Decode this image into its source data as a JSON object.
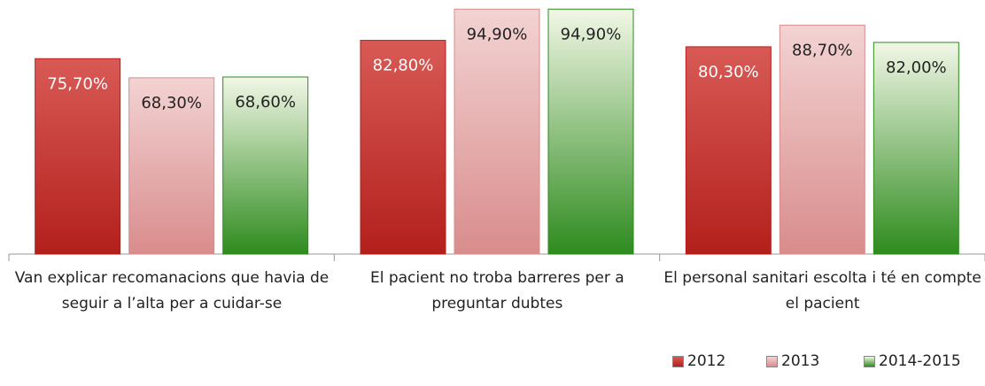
{
  "chart_data": {
    "type": "bar",
    "categories": [
      "Van explicar recomanacions que havia de seguir a l’alta per a cuidar-se",
      "El pacient no troba barreres per a preguntar dubtes",
      "El personal sanitari escolta i té en compte el pacient"
    ],
    "series": [
      {
        "name": "2012",
        "color": "#b3201c",
        "values": [
          75.7,
          82.8,
          80.3
        ],
        "value_labels": [
          "75,70%",
          "82,80%",
          "80,30%"
        ]
      },
      {
        "name": "2013",
        "color": "#d98c8c",
        "values": [
          68.3,
          94.9,
          88.7
        ],
        "value_labels": [
          "68,30%",
          "94,90%",
          "88,70%"
        ]
      },
      {
        "name": "2014-2015",
        "color": "#2e8b1e",
        "values": [
          68.6,
          94.9,
          82.0
        ],
        "value_labels": [
          "68,60%",
          "94,90%",
          "82,00%"
        ]
      }
    ],
    "ylim": [
      0,
      95
    ],
    "legend": "bottom-right"
  }
}
